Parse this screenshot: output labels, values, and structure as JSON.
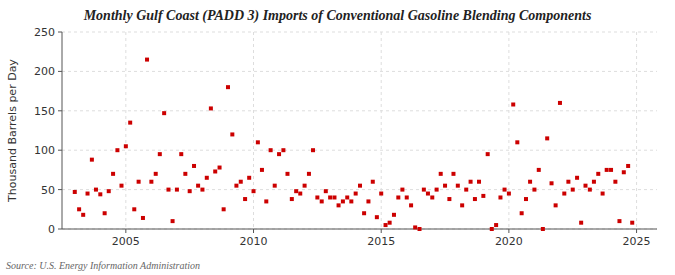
{
  "chart_data": {
    "type": "scatter",
    "title": "Monthly Gulf Coast (PADD 3) Imports of Conventional Gasoline Blending Components",
    "ylabel": "Thousand Barrels per Day",
    "annotations": [
      "Source: U.S. Energy Information Administration"
    ],
    "color": "#cc0000",
    "marker": "square",
    "grid": true,
    "xlim": [
      2002.5,
      2025.8
    ],
    "ylim": [
      0,
      250
    ],
    "xticks": [
      2005,
      2010,
      2015,
      2020,
      2025
    ],
    "yticks": [
      0,
      50,
      100,
      150,
      200,
      250
    ],
    "x": [
      2003.0,
      2003.17,
      2003.33,
      2003.5,
      2003.67,
      2003.83,
      2004.0,
      2004.17,
      2004.33,
      2004.5,
      2004.67,
      2004.83,
      2005.0,
      2005.17,
      2005.33,
      2005.5,
      2005.67,
      2005.83,
      2006.0,
      2006.17,
      2006.33,
      2006.5,
      2006.67,
      2006.83,
      2007.0,
      2007.17,
      2007.33,
      2007.5,
      2007.67,
      2007.83,
      2008.0,
      2008.17,
      2008.33,
      2008.5,
      2008.67,
      2008.83,
      2009.0,
      2009.17,
      2009.33,
      2009.5,
      2009.67,
      2009.83,
      2010.0,
      2010.17,
      2010.33,
      2010.5,
      2010.67,
      2010.83,
      2011.0,
      2011.17,
      2011.33,
      2011.5,
      2011.67,
      2011.83,
      2012.0,
      2012.17,
      2012.33,
      2012.5,
      2012.67,
      2012.83,
      2013.0,
      2013.17,
      2013.33,
      2013.5,
      2013.67,
      2013.83,
      2014.0,
      2014.17,
      2014.33,
      2014.5,
      2014.67,
      2014.83,
      2015.0,
      2015.17,
      2015.33,
      2015.5,
      2015.67,
      2015.83,
      2016.0,
      2016.17,
      2016.33,
      2016.5,
      2016.67,
      2016.83,
      2017.0,
      2017.17,
      2017.33,
      2017.5,
      2017.67,
      2017.83,
      2018.0,
      2018.17,
      2018.33,
      2018.5,
      2018.67,
      2018.83,
      2019.0,
      2019.17,
      2019.33,
      2019.5,
      2019.67,
      2019.83,
      2020.0,
      2020.17,
      2020.33,
      2020.5,
      2020.67,
      2020.83,
      2021.0,
      2021.17,
      2021.33,
      2021.5,
      2021.67,
      2021.83,
      2022.0,
      2022.17,
      2022.33,
      2022.5,
      2022.67,
      2022.83,
      2023.0,
      2023.17,
      2023.33,
      2023.5,
      2023.67,
      2023.83,
      2024.0,
      2024.17,
      2024.33,
      2024.5,
      2024.67,
      2024.83
    ],
    "values": [
      47,
      25,
      18,
      45,
      88,
      50,
      44,
      20,
      48,
      70,
      100,
      55,
      105,
      135,
      25,
      60,
      14,
      215,
      60,
      70,
      95,
      147,
      50,
      10,
      50,
      95,
      70,
      48,
      80,
      55,
      50,
      65,
      153,
      73,
      78,
      25,
      180,
      120,
      55,
      60,
      38,
      65,
      48,
      110,
      75,
      35,
      100,
      55,
      95,
      100,
      70,
      38,
      48,
      45,
      55,
      70,
      100,
      40,
      35,
      48,
      40,
      40,
      30,
      35,
      40,
      35,
      45,
      55,
      20,
      35,
      60,
      15,
      45,
      5,
      8,
      18,
      40,
      50,
      40,
      30,
      2,
      0,
      50,
      45,
      40,
      50,
      70,
      55,
      38,
      70,
      55,
      30,
      50,
      60,
      38,
      60,
      42,
      95,
      0,
      5,
      40,
      50,
      45,
      158,
      110,
      20,
      38,
      60,
      50,
      75,
      0,
      115,
      58,
      30,
      160,
      45,
      60,
      50,
      65,
      8,
      55,
      50,
      60,
      70,
      45,
      75,
      75,
      60,
      10,
      72,
      80,
      8
    ]
  }
}
